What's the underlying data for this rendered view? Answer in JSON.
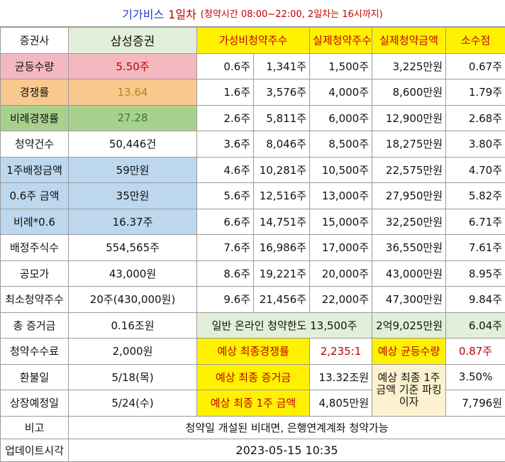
{
  "banner": {
    "company": "기가비스",
    "day": "1일차",
    "note": "(청약시간 08:00~22:00, 2일차는 16시까지)"
  },
  "labels": {
    "broker": "증권사",
    "equal_qty": "균등수량",
    "competition": "경쟁률",
    "prop_competition": "비례경쟁률",
    "sub_count": "청약건수",
    "per_share_amt": "1주배정금액",
    "amt_06": "0.6주 금액",
    "prop_06": "비례*0.6",
    "alloc_shares": "배정주식수",
    "offer_price": "공모가",
    "min_sub": "최소청약주수",
    "total_deposit": "총 증거금",
    "fee": "청약수수료",
    "refund_day": "환불일",
    "listing_day": "상장예정일",
    "remarks": "비고",
    "updated": "업데이트시각"
  },
  "values": {
    "broker": "삼성증권",
    "equal_qty": "5.50주",
    "competition": "13.64",
    "prop_competition": "27.28",
    "sub_count": "50,446건",
    "per_share_amt": "59만원",
    "amt_06": "35만원",
    "prop_06": "16.37주",
    "alloc_shares": "554,565주",
    "offer_price": "43,000원",
    "min_sub": "20주(430,000원)",
    "total_deposit": "0.16조원",
    "fee": "2,000원",
    "refund_day": "5/18(목)",
    "listing_day": "5/24(수)",
    "remarks": "청약일 개설된 비대면, 은행연계계좌 청약가능",
    "updated": "2023-05-15 10:35"
  },
  "headers": {
    "value_sub": "가성비청약주수",
    "actual_sub": "실제청약주수",
    "actual_amt": "실제청약금액",
    "decimal": "소수점"
  },
  "rows": [
    {
      "a": "0.6주",
      "b": "1,341주",
      "c": "1,500주",
      "d": "3,225만원",
      "e": "0.67주"
    },
    {
      "a": "1.6주",
      "b": "3,576주",
      "c": "4,000주",
      "d": "8,600만원",
      "e": "1.79주"
    },
    {
      "a": "2.6주",
      "b": "5,811주",
      "c": "6,000주",
      "d": "12,900만원",
      "e": "2.68주"
    },
    {
      "a": "3.6주",
      "b": "8,046주",
      "c": "8,500주",
      "d": "18,275만원",
      "e": "3.80주"
    },
    {
      "a": "4.6주",
      "b": "10,281주",
      "c": "10,500주",
      "d": "22,575만원",
      "e": "4.70주"
    },
    {
      "a": "5.6주",
      "b": "12,516주",
      "c": "13,000주",
      "d": "27,950만원",
      "e": "5.82주"
    },
    {
      "a": "6.6주",
      "b": "14,751주",
      "c": "15,000주",
      "d": "32,250만원",
      "e": "6.71주"
    },
    {
      "a": "7.6주",
      "b": "16,986주",
      "c": "17,000주",
      "d": "36,550만원",
      "e": "7.61주"
    },
    {
      "a": "8.6주",
      "b": "19,221주",
      "c": "20,000주",
      "d": "43,000만원",
      "e": "8.95주"
    },
    {
      "a": "9.6주",
      "b": "21,456주",
      "c": "22,000주",
      "d": "47,300만원",
      "e": "9.84주"
    }
  ],
  "online_limit": {
    "label": "일반 온라인 청약한도",
    "shares": "13,500주",
    "amount": "2억9,025만원",
    "decimal": "6.04주"
  },
  "forecast": {
    "final_comp_label": "예상 최종경쟁률",
    "final_comp": "2,235:1",
    "equal_label": "예상 균등수량",
    "equal": "0.87주",
    "deposit_label": "예상 최종 증거금",
    "deposit": "13.32조원",
    "parking_label": "예상 최종 1주 금액 기준 파킹 이자",
    "parking_rate": "3.50%",
    "parking_amt": "7,796원",
    "one_share_label": "예상 최종 1주 금액",
    "one_share": "4,805만원"
  }
}
